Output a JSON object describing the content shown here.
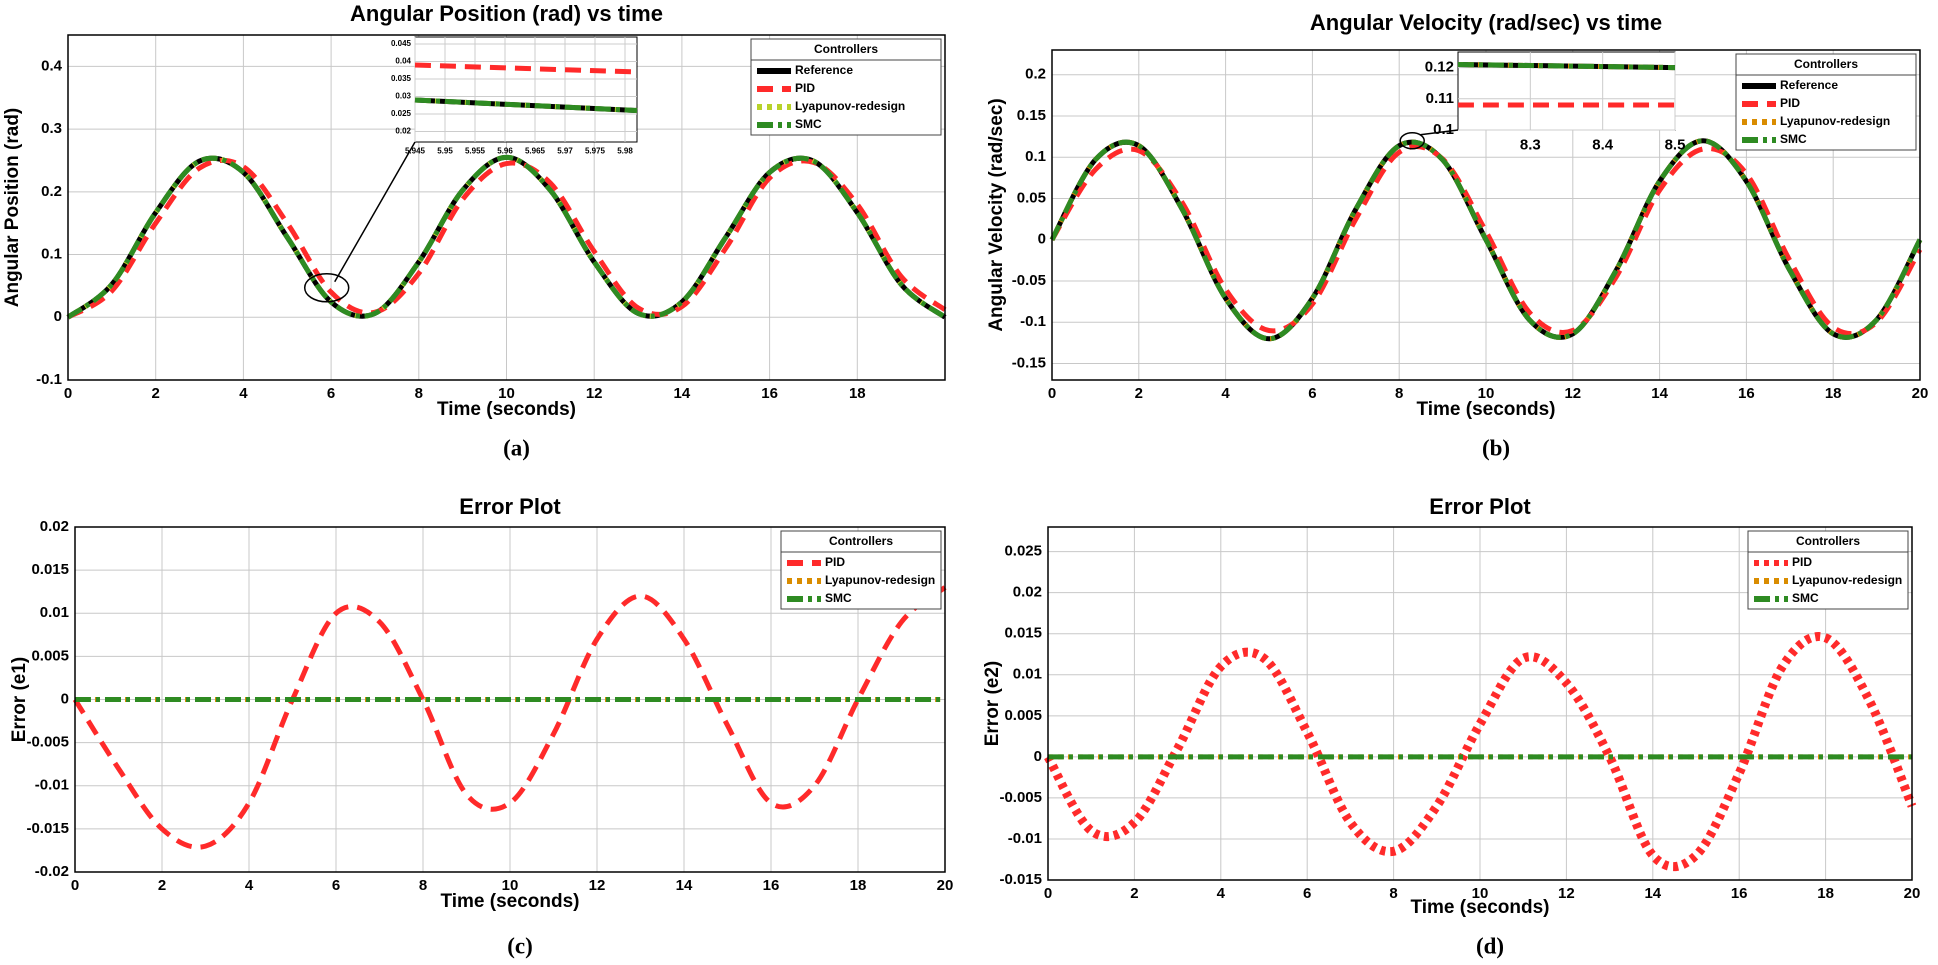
{
  "chart_data": [
    {
      "type": "line",
      "title": "Angular Position (rad) vs time",
      "xlabel": "Time (seconds)",
      "ylabel": "Angular Position (rad)",
      "caption": "(a)",
      "xlim": [
        0,
        20
      ],
      "xticks": [
        0,
        2,
        4,
        6,
        8,
        10,
        12,
        14,
        16,
        18
      ],
      "ylim": [
        -0.1,
        0.45
      ],
      "yticks": [
        -0.1,
        0,
        0.1,
        0.2,
        0.3,
        0.4
      ],
      "grid": true,
      "legend_title": "Controllers",
      "legend": "upper right",
      "x": [
        0,
        1,
        2,
        3,
        4,
        5,
        6,
        7,
        8,
        9,
        10,
        11,
        12,
        13,
        14,
        15,
        16,
        17,
        18,
        19,
        20
      ],
      "series": [
        {
          "name": "Reference",
          "color": "#000000",
          "dash": "solid",
          "values": [
            0,
            0.0525,
            0.167,
            0.249,
            0.231,
            0.1275,
            0.0244,
            0.0062,
            0.0881,
            0.2025,
            0.255,
            0.2025,
            0.0881,
            0.0062,
            0.0244,
            0.1275,
            0.231,
            0.249,
            0.167,
            0.0525,
            0
          ]
        },
        {
          "name": "PID",
          "color": "#ff2a2a",
          "dash": "dashed",
          "values": [
            0,
            0.042,
            0.15,
            0.238,
            0.24,
            0.15,
            0.04,
            0.008,
            0.07,
            0.188,
            0.245,
            0.214,
            0.105,
            0.015,
            0.017,
            0.11,
            0.222,
            0.247,
            0.18,
            0.065,
            0.012
          ]
        },
        {
          "name": "Lyapunov-redesign",
          "color": "#b8d22a",
          "dash": "dotted",
          "values": [
            0,
            0.0525,
            0.167,
            0.249,
            0.231,
            0.1275,
            0.0244,
            0.0062,
            0.0881,
            0.2025,
            0.255,
            0.2025,
            0.0881,
            0.0062,
            0.0244,
            0.1275,
            0.231,
            0.249,
            0.167,
            0.0525,
            0
          ]
        },
        {
          "name": "SMC",
          "color": "#2e8b22",
          "dash": "dashdot",
          "values": [
            0,
            0.0525,
            0.167,
            0.249,
            0.231,
            0.1275,
            0.0244,
            0.0062,
            0.0881,
            0.2025,
            0.255,
            0.2025,
            0.0881,
            0.0062,
            0.0244,
            0.1275,
            0.231,
            0.249,
            0.167,
            0.0525,
            0
          ]
        }
      ],
      "inset": {
        "xlim": [
          5.945,
          5.982
        ],
        "xticks": [
          5.945,
          5.95,
          5.955,
          5.96,
          5.965,
          5.97,
          5.975,
          5.98
        ],
        "ylim": [
          0.017,
          0.047
        ],
        "yticks": [
          0.02,
          0.025,
          0.03,
          0.035,
          0.04,
          0.045
        ],
        "x": [
          5.945,
          5.982
        ],
        "series": [
          {
            "color": "#ff2a2a",
            "dash": "dashed",
            "values": [
              0.039,
              0.037
            ]
          },
          {
            "color": "#000000",
            "dash": "solid",
            "values": [
              0.029,
              0.026
            ]
          },
          {
            "color": "#b8d22a",
            "dash": "dotted",
            "values": [
              0.029,
              0.026
            ]
          },
          {
            "color": "#2e8b22",
            "dash": "dashdot",
            "values": [
              0.029,
              0.026
            ]
          }
        ]
      }
    },
    {
      "type": "line",
      "title": "Angular Velocity (rad/sec) vs time",
      "xlabel": "Time (seconds)",
      "ylabel": "Angular Velocity (rad/sec)",
      "caption": "(b)",
      "xlim": [
        0,
        20
      ],
      "xticks": [
        0,
        2,
        4,
        6,
        8,
        10,
        12,
        14,
        16,
        18,
        20
      ],
      "ylim": [
        -0.17,
        0.23
      ],
      "yticks": [
        -0.15,
        -0.1,
        -0.05,
        0,
        0.05,
        0.1,
        0.15,
        0.2
      ],
      "grid": true,
      "legend_title": "Controllers",
      "legend": "upper right",
      "x": [
        0,
        1,
        2,
        3,
        4,
        5,
        6,
        7,
        8,
        9,
        10,
        11,
        12,
        13,
        14,
        15,
        16,
        17,
        18,
        19,
        20
      ],
      "series": [
        {
          "name": "Reference",
          "color": "#000000",
          "dash": "solid",
          "values": [
            0,
            0.097,
            0.114,
            0.037,
            -0.071,
            -0.12,
            -0.071,
            0.037,
            0.114,
            0.097,
            0,
            -0.097,
            -0.114,
            -0.037,
            0.071,
            0.12,
            0.071,
            -0.037,
            -0.114,
            -0.097,
            0
          ]
        },
        {
          "name": "PID",
          "color": "#ff2a2a",
          "dash": "dashed",
          "values": [
            0,
            0.085,
            0.108,
            0.045,
            -0.06,
            -0.11,
            -0.078,
            0.025,
            0.106,
            0.098,
            0.01,
            -0.088,
            -0.11,
            -0.045,
            0.06,
            0.11,
            0.08,
            -0.025,
            -0.106,
            -0.1,
            -0.012
          ]
        },
        {
          "name": "Lyapunov-redesign",
          "color": "#d98c00",
          "dash": "dotted",
          "values": [
            0,
            0.097,
            0.114,
            0.037,
            -0.071,
            -0.12,
            -0.071,
            0.037,
            0.114,
            0.097,
            0,
            -0.097,
            -0.114,
            -0.037,
            0.071,
            0.12,
            0.071,
            -0.037,
            -0.114,
            -0.097,
            0
          ]
        },
        {
          "name": "SMC",
          "color": "#2e8b22",
          "dash": "dashdot",
          "values": [
            0,
            0.097,
            0.114,
            0.037,
            -0.071,
            -0.12,
            -0.071,
            0.037,
            0.114,
            0.097,
            0,
            -0.097,
            -0.114,
            -0.037,
            0.071,
            0.12,
            0.071,
            -0.037,
            -0.114,
            -0.097,
            0
          ]
        }
      ],
      "inset": {
        "xlim": [
          8.2,
          8.5
        ],
        "xticks": [
          8.3,
          8.4,
          8.5
        ],
        "ylim": [
          0.1,
          0.125
        ],
        "yticks": [
          0.1,
          0.11,
          0.12
        ],
        "x": [
          8.2,
          8.5
        ],
        "series": [
          {
            "color": "#ff2a2a",
            "dash": "dashed",
            "values": [
              0.108,
              0.108
            ]
          },
          {
            "color": "#000000",
            "dash": "solid",
            "values": [
              0.121,
              0.12
            ]
          },
          {
            "color": "#d98c00",
            "dash": "dotted",
            "values": [
              0.121,
              0.12
            ]
          },
          {
            "color": "#2e8b22",
            "dash": "dashdot",
            "values": [
              0.121,
              0.12
            ]
          }
        ]
      }
    },
    {
      "type": "line",
      "title": "Error Plot",
      "xlabel": "Time (seconds)",
      "ylabel": "Error (e1)",
      "caption": "(c)",
      "xlim": [
        0,
        20
      ],
      "xticks": [
        0,
        2,
        4,
        6,
        8,
        10,
        12,
        14,
        16,
        18,
        20
      ],
      "ylim": [
        -0.02,
        0.02
      ],
      "yticks": [
        -0.02,
        -0.015,
        -0.01,
        -0.005,
        0,
        0.005,
        0.01,
        0.015,
        0.02
      ],
      "grid": true,
      "legend_title": "Controllers",
      "legend": "upper right",
      "x": [
        0,
        1,
        2,
        3,
        4,
        5,
        6,
        7,
        8,
        9,
        10,
        11,
        12,
        13,
        14,
        15,
        16,
        17,
        18,
        19,
        20
      ],
      "series": [
        {
          "name": "PID",
          "color": "#ff2a2a",
          "dash": "dashed",
          "values": [
            0,
            -0.008,
            -0.015,
            -0.017,
            -0.012,
            0,
            0.01,
            0.009,
            0,
            -0.011,
            -0.012,
            -0.004,
            0.007,
            0.012,
            0.007,
            -0.003,
            -0.012,
            -0.01,
            0,
            0.009,
            0.013
          ]
        },
        {
          "name": "Lyapunov-redesign",
          "color": "#d98c00",
          "dash": "dotted",
          "values": [
            0,
            0,
            0,
            0,
            0,
            0,
            0,
            0,
            0,
            0,
            0,
            0,
            0,
            0,
            0,
            0,
            0,
            0,
            0,
            0,
            0
          ]
        },
        {
          "name": "SMC",
          "color": "#2e8b22",
          "dash": "dashdot",
          "values": [
            0,
            0,
            0,
            0,
            0,
            0,
            0,
            0,
            0,
            0,
            0,
            0,
            0,
            0,
            0,
            0,
            0,
            0,
            0,
            0,
            0
          ]
        }
      ]
    },
    {
      "type": "line",
      "title": "Error Plot",
      "xlabel": "Time (seconds)",
      "ylabel": "Error (e2)",
      "caption": "(d)",
      "xlim": [
        0,
        20
      ],
      "xticks": [
        0,
        2,
        4,
        6,
        8,
        10,
        12,
        14,
        16,
        18,
        20
      ],
      "ylim": [
        -0.015,
        0.028
      ],
      "yticks": [
        -0.015,
        -0.01,
        -0.005,
        0,
        0.005,
        0.01,
        0.015,
        0.02,
        0.025
      ],
      "grid": true,
      "legend_title": "Controllers",
      "legend": "upper right",
      "x": [
        0,
        1,
        2,
        3,
        4,
        5,
        6,
        7,
        8,
        9,
        10,
        11,
        12,
        13,
        14,
        15,
        16,
        17,
        18,
        19,
        20
      ],
      "series": [
        {
          "name": "PID",
          "color": "#ff2a2a",
          "dash": "dotted",
          "linewidth": 9,
          "values": [
            0,
            -0.009,
            -0.008,
            0.001,
            0.011,
            0.012,
            0.003,
            -0.008,
            -0.0115,
            -0.006,
            0.004,
            0.012,
            0.009,
            0,
            -0.012,
            -0.012,
            -0.002,
            0.011,
            0.0145,
            0.007,
            -0.006
          ]
        },
        {
          "name": "Lyapunov-redesign",
          "color": "#d98c00",
          "dash": "dotted",
          "values": [
            0,
            0,
            0,
            0,
            0,
            0,
            0,
            0,
            0,
            0,
            0,
            0,
            0,
            0,
            0,
            0,
            0,
            0,
            0,
            0,
            0
          ]
        },
        {
          "name": "SMC",
          "color": "#2e8b22",
          "dash": "dashdot",
          "values": [
            0,
            0,
            0,
            0,
            0,
            0,
            0,
            0,
            0,
            0,
            0,
            0,
            0,
            0,
            0,
            0,
            0,
            0,
            0,
            0,
            0
          ]
        }
      ]
    }
  ]
}
